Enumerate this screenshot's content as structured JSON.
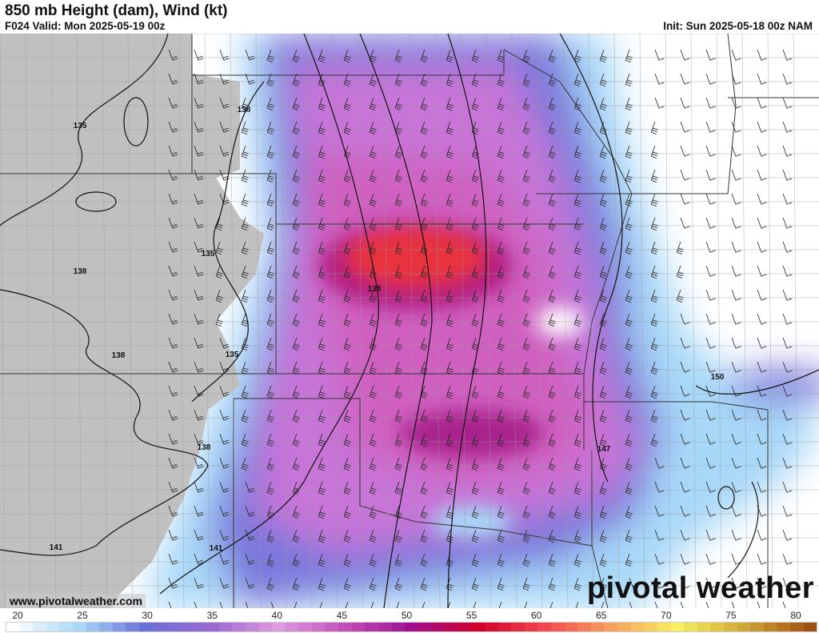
{
  "header": {
    "title": "850 mb Height (dam), Wind (kt)",
    "valid": "F024 Valid: Mon 2025-05-19 00z",
    "init": "Init: Sun 2025-05-18 00z NAM"
  },
  "map": {
    "height_contour_labels": [
      "135",
      "138",
      "135",
      "138",
      "138",
      "135",
      "138",
      "138",
      "141",
      "141",
      "147",
      "150"
    ],
    "terrain_mask_color": "#c0c0c0",
    "wind_core_color": "#e8323c"
  },
  "branding": {
    "website": "www.pivotalweather.com",
    "logo": "pivotal weather"
  },
  "colorbar": {
    "units": "kt",
    "tick_labels": [
      "20",
      "25",
      "30",
      "35",
      "40",
      "45",
      "50",
      "55",
      "60",
      "65",
      "70",
      "75",
      "80"
    ],
    "range": [
      20,
      80
    ],
    "color_stops": [
      "#ffffff",
      "#a8d8f8",
      "#6a6fd8",
      "#9a6ad0",
      "#e09ae0",
      "#c050b8",
      "#a01090",
      "#d0002a",
      "#f04850",
      "#f8a060",
      "#f8f060",
      "#d0a838",
      "#a05010"
    ]
  }
}
